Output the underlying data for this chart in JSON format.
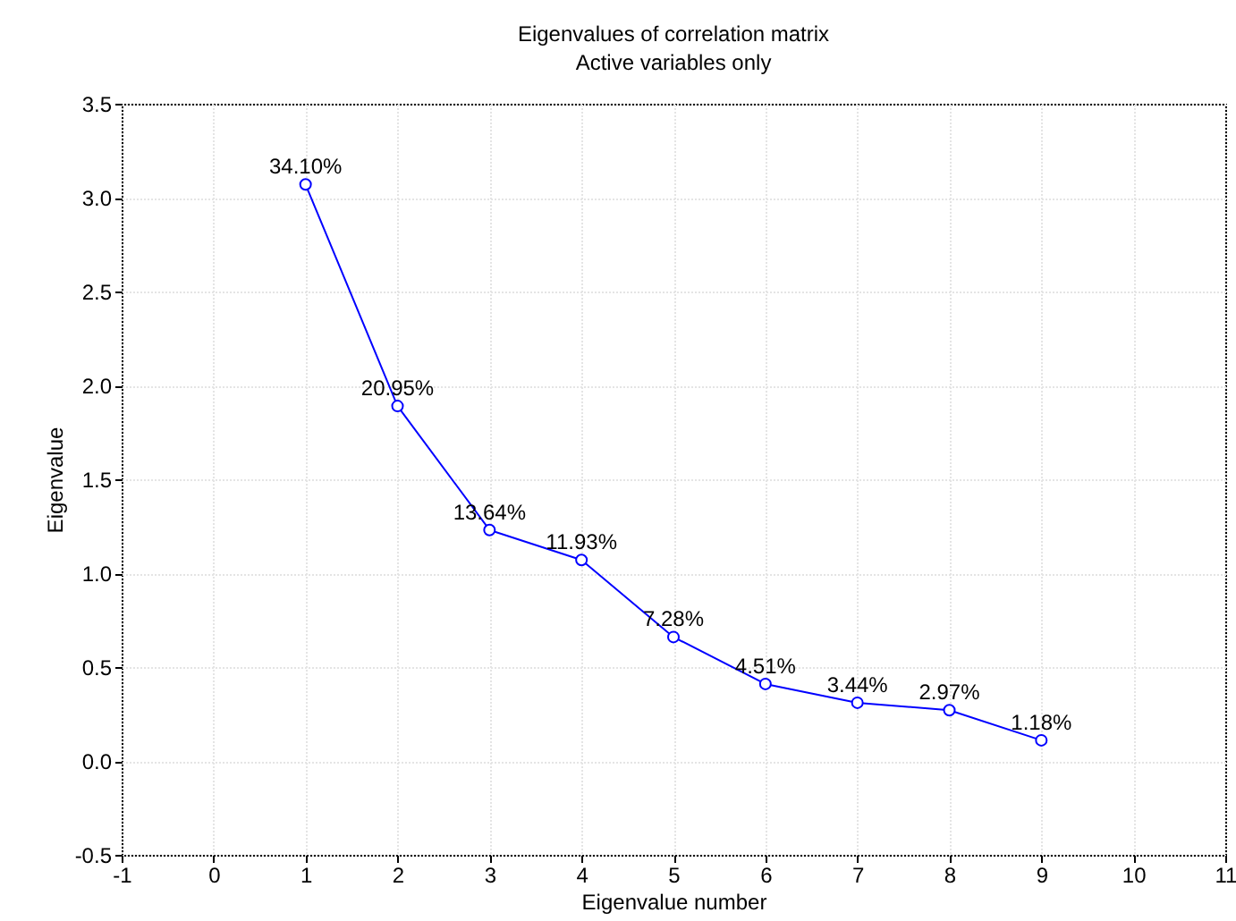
{
  "chart_data": {
    "type": "line",
    "title": "Eigenvalues of correlation matrix",
    "subtitle": "Active variables only",
    "xlabel": "Eigenvalue number",
    "ylabel": "Eigenvalue",
    "x": [
      1,
      2,
      3,
      4,
      5,
      6,
      7,
      8,
      9
    ],
    "series": [
      {
        "color": "#0000ff",
        "values": [
          3.07,
          1.89,
          1.23,
          1.07,
          0.66,
          0.41,
          0.31,
          0.27,
          0.11
        ]
      }
    ],
    "annotations": [
      {
        "text": "34.10%",
        "x": 1,
        "y": 3.07
      },
      {
        "text": "20.95%",
        "x": 2,
        "y": 1.89
      },
      {
        "text": "13.64%",
        "x": 3,
        "y": 1.23
      },
      {
        "text": "11.93%",
        "x": 4,
        "y": 1.07
      },
      {
        "text": "7.28%",
        "x": 5,
        "y": 0.66
      },
      {
        "text": "4.51%",
        "x": 6,
        "y": 0.41
      },
      {
        "text": "3.44%",
        "x": 7,
        "y": 0.31
      },
      {
        "text": "2.97%",
        "x": 8,
        "y": 0.27
      },
      {
        "text": "1.18%",
        "x": 9,
        "y": 0.11
      }
    ],
    "xlim": [
      -1,
      11
    ],
    "xticks": [
      -1,
      0,
      1,
      2,
      3,
      4,
      5,
      6,
      7,
      8,
      9,
      10,
      11
    ],
    "ylim": [
      -0.5,
      3.5
    ],
    "yticks": [
      {
        "value": -0.5,
        "label": "-0.5"
      },
      {
        "value": 0,
        "label": "0.0"
      },
      {
        "value": 0.5,
        "label": "0.5"
      },
      {
        "value": 1,
        "label": "1.0"
      },
      {
        "value": 1.5,
        "label": "1.5"
      },
      {
        "value": 2,
        "label": "2.0"
      },
      {
        "value": 2.5,
        "label": "2.5"
      },
      {
        "value": 3,
        "label": "3.0"
      },
      {
        "value": 3.5,
        "label": "3.5"
      }
    ],
    "grid": true,
    "marker": "circle",
    "line_style": "solid"
  }
}
